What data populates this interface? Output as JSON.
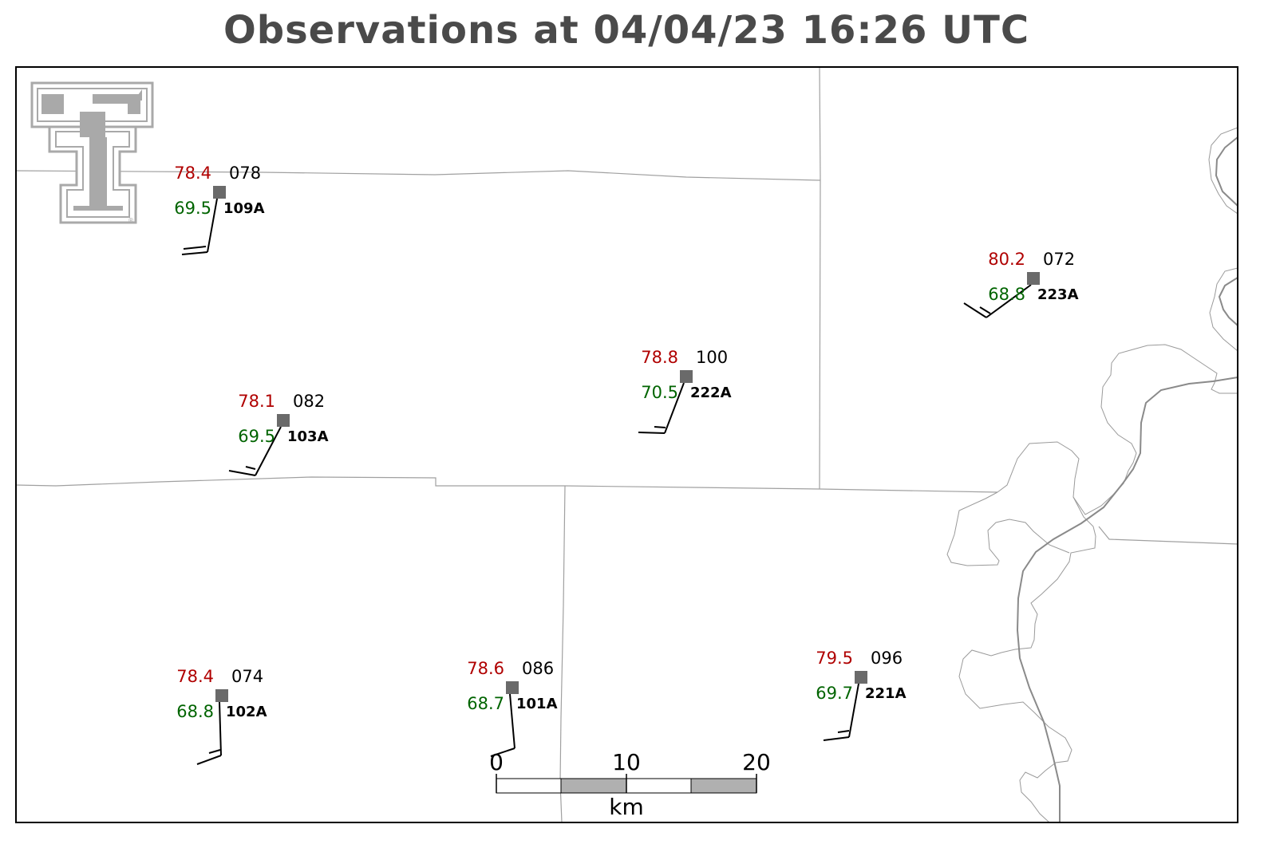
{
  "title": "Observations at 04/04/23 16:26 UTC",
  "colors": {
    "temperature": "#b00000",
    "dewpoint": "#006400",
    "station_marker": "#6a6a6a",
    "boundary": "#a0a0a0",
    "river": "#8a8a8a",
    "logo": "#a9a9a9"
  },
  "logo": {
    "name": "double-t-logo",
    "registered_mark": "®"
  },
  "stations": [
    {
      "id": "109A",
      "temp": "78.4",
      "dewpoint": "69.5",
      "pressure": "078"
    },
    {
      "id": "223A",
      "temp": "80.2",
      "dewpoint": "68.8",
      "pressure": "072"
    },
    {
      "id": "222A",
      "temp": "78.8",
      "dewpoint": "70.5",
      "pressure": "100"
    },
    {
      "id": "103A",
      "temp": "78.1",
      "dewpoint": "69.5",
      "pressure": "082"
    },
    {
      "id": "102A",
      "temp": "78.4",
      "dewpoint": "68.8",
      "pressure": "074"
    },
    {
      "id": "101A",
      "temp": "78.6",
      "dewpoint": "68.7",
      "pressure": "086"
    },
    {
      "id": "221A",
      "temp": "79.5",
      "dewpoint": "69.7",
      "pressure": "096"
    }
  ],
  "scale_bar": {
    "labels": [
      "0",
      "10",
      "20"
    ],
    "unit": "km"
  }
}
